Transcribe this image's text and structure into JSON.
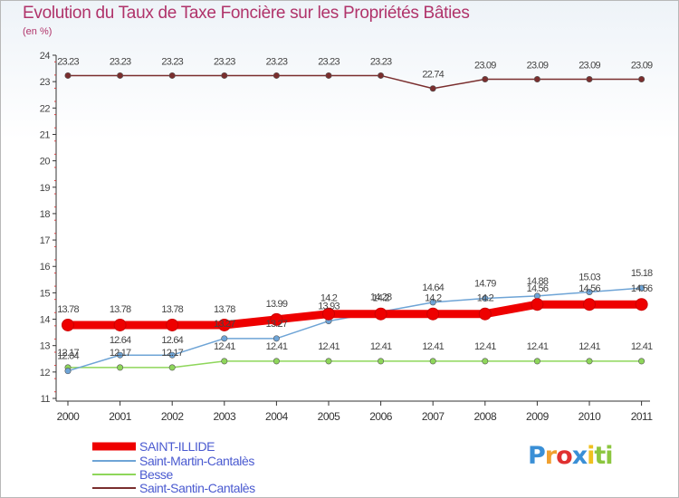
{
  "title": "Evolution du Taux de Taxe Foncière sur les Propriétés Bâties",
  "subtitle": "(en %)",
  "logo": {
    "letters": [
      "P",
      "r",
      "o",
      "x",
      "i",
      "ti"
    ]
  },
  "chart_data": {
    "type": "line",
    "title": "Evolution du Taux de Taxe Foncière sur les Propriétés Bâties",
    "ylabel": "(en %)",
    "xlabel": "",
    "ylim": [
      11,
      24
    ],
    "yticks": [
      11,
      12,
      13,
      14,
      15,
      16,
      17,
      18,
      19,
      20,
      21,
      22,
      23,
      24
    ],
    "categories": [
      "2000",
      "2001",
      "2002",
      "2003",
      "2004",
      "2005",
      "2006",
      "2007",
      "2008",
      "2009",
      "2010",
      "2011"
    ],
    "grid": false,
    "legend_position": "bottom-left",
    "series": [
      {
        "name": "SAINT-ILLIDE",
        "color": "#ee0000",
        "values": [
          13.78,
          13.78,
          13.78,
          13.78,
          13.99,
          14.2,
          14.2,
          14.2,
          14.2,
          14.56,
          14.56,
          14.56
        ],
        "labels": [
          "13.78",
          "13.78",
          "13.78",
          "13.78",
          "13.99",
          "14.2",
          "14.2",
          "",
          "",
          "",
          "",
          ""
        ]
      },
      {
        "name": "Saint-Martin-Cantalès",
        "color": "#6ea4d6",
        "values": [
          12.04,
          12.64,
          12.64,
          13.27,
          13.27,
          13.93,
          14.28,
          14.64,
          14.79,
          14.88,
          15.03,
          15.18
        ],
        "labels": [
          "12.04",
          "12.64",
          "12.64",
          "13.27",
          "13.27",
          "13.93",
          "14.28",
          "14.64",
          "14.79",
          "14.88",
          "15.03",
          "15.18"
        ]
      },
      {
        "name": "Besse",
        "color": "#8ed65a",
        "values": [
          12.17,
          12.17,
          12.17,
          12.41,
          12.41,
          12.41,
          12.41,
          12.41,
          12.41,
          12.41,
          12.41,
          12.41
        ],
        "labels": [
          "12.17",
          "12.17",
          "12.17",
          "12.41",
          "12.41",
          "12.41",
          "12.41",
          "12.41",
          "12.41",
          "12.41",
          "12.41",
          "12.41"
        ]
      },
      {
        "name": "Saint-Santin-Cantalès",
        "color": "#7a2e2e",
        "values": [
          23.23,
          23.23,
          23.23,
          23.23,
          23.23,
          23.23,
          23.23,
          22.74,
          23.09,
          23.09,
          23.09,
          23.09
        ],
        "labels": [
          "23.23",
          "23.23",
          "23.23",
          "23.23",
          "23.23",
          "23.23",
          "23.23",
          "22.74",
          "23.09",
          "23.09",
          "23.09",
          "23.09"
        ]
      }
    ],
    "extra_labels": [
      {
        "series": 0,
        "index": 7,
        "text": "14.2"
      },
      {
        "series": 0,
        "index": 8,
        "text": "14.2"
      },
      {
        "series": 0,
        "index": 9,
        "text": "14.56"
      },
      {
        "series": 0,
        "index": 10,
        "text": "14.56"
      },
      {
        "series": 0,
        "index": 11,
        "text": "14.56"
      }
    ]
  }
}
